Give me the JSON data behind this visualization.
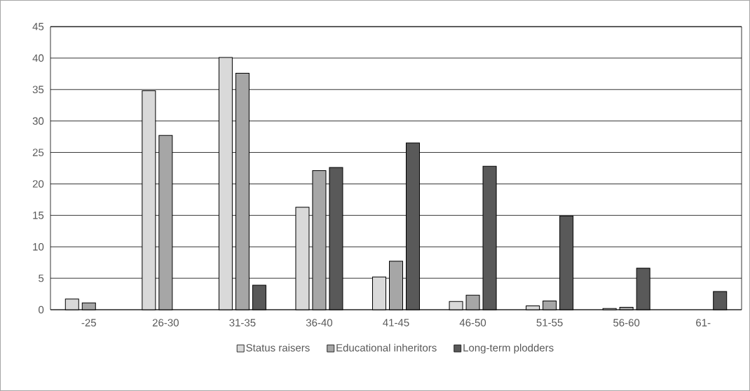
{
  "chart_data": {
    "type": "bar",
    "categories": [
      "-25",
      "26-30",
      "31-35",
      "36-40",
      "41-45",
      "46-50",
      "51-55",
      "56-60",
      "61-"
    ],
    "series": [
      {
        "name": "Status raisers",
        "color": "#d9d9d9",
        "values": [
          1.7,
          34.8,
          40.1,
          16.3,
          5.2,
          1.3,
          0.6,
          0.2,
          null
        ]
      },
      {
        "name": "Educational inheritors",
        "color": "#a6a6a6",
        "values": [
          1.1,
          27.7,
          37.6,
          22.1,
          7.7,
          2.3,
          1.4,
          0.4,
          null
        ]
      },
      {
        "name": "Long-term plodders",
        "color": "#595959",
        "values": [
          null,
          null,
          3.9,
          22.6,
          26.5,
          22.8,
          14.9,
          6.6,
          2.9
        ]
      }
    ],
    "ylim": [
      0,
      45
    ],
    "yticks": [
      0,
      5,
      10,
      15,
      20,
      25,
      30,
      35,
      40,
      45
    ],
    "grid": "y",
    "legend": "bottom"
  }
}
